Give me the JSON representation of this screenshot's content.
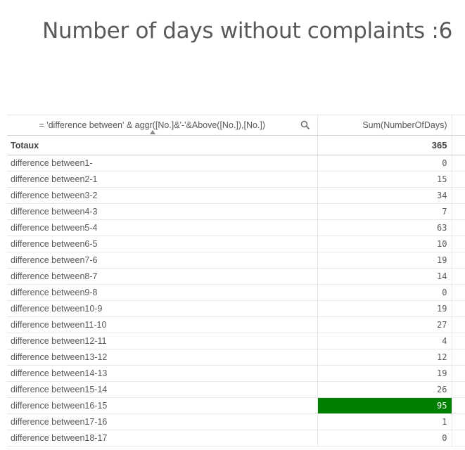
{
  "kpi": {
    "title": "Number of days without complaints :6"
  },
  "table": {
    "dimension_header": "= 'difference between' & aggr([No.]&'-'&Above([No.]),[No.])",
    "measure_header": "Sum(NumberOfDays)",
    "totals_label": "Totaux",
    "totals_value": "365",
    "highlight_color": "#008000",
    "rows": [
      {
        "label": "difference between1-",
        "value": "0",
        "highlight": false
      },
      {
        "label": "difference between2-1",
        "value": "15",
        "highlight": false
      },
      {
        "label": "difference between3-2",
        "value": "34",
        "highlight": false
      },
      {
        "label": "difference between4-3",
        "value": "7",
        "highlight": false
      },
      {
        "label": "difference between5-4",
        "value": "63",
        "highlight": false
      },
      {
        "label": "difference between6-5",
        "value": "10",
        "highlight": false
      },
      {
        "label": "difference between7-6",
        "value": "19",
        "highlight": false
      },
      {
        "label": "difference between8-7",
        "value": "14",
        "highlight": false
      },
      {
        "label": "difference between9-8",
        "value": "0",
        "highlight": false
      },
      {
        "label": "difference between10-9",
        "value": "19",
        "highlight": false
      },
      {
        "label": "difference between11-10",
        "value": "27",
        "highlight": false
      },
      {
        "label": "difference between12-11",
        "value": "4",
        "highlight": false
      },
      {
        "label": "difference between13-12",
        "value": "12",
        "highlight": false
      },
      {
        "label": "difference between14-13",
        "value": "19",
        "highlight": false
      },
      {
        "label": "difference between15-14",
        "value": "26",
        "highlight": false
      },
      {
        "label": "difference between16-15",
        "value": "95",
        "highlight": true
      },
      {
        "label": "difference between17-16",
        "value": "1",
        "highlight": false
      },
      {
        "label": "difference between18-17",
        "value": "0",
        "highlight": false
      }
    ]
  }
}
